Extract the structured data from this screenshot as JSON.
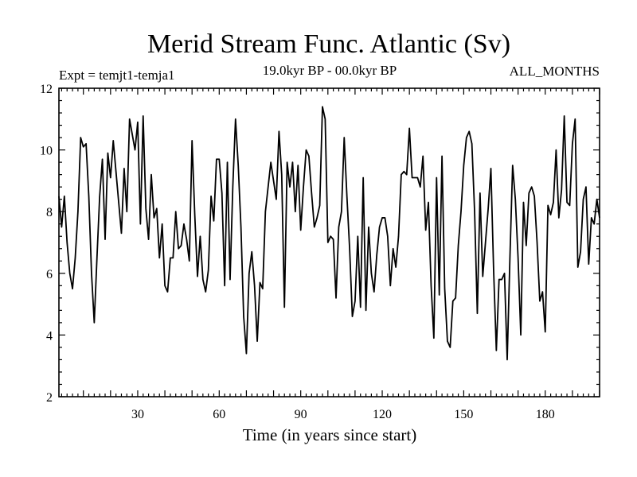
{
  "chart_data": {
    "type": "line",
    "title": "Merid Stream Func. Atlantic (Sv)",
    "left_note": "Expt = temjt1-temja1",
    "center_note": "19.0kyr BP - 00.0kyr BP",
    "right_note": "ALL_MONTHS",
    "xlabel": "Time (in years since start)",
    "ylabel": "",
    "xlim": [
      1,
      200
    ],
    "ylim": [
      2,
      12
    ],
    "xticks": [
      30,
      60,
      90,
      120,
      150,
      180
    ],
    "yticks": [
      2,
      4,
      6,
      8,
      10,
      12
    ],
    "grid": false,
    "series": [
      {
        "name": "Merid Stream Func. Atlantic",
        "color": "#000000",
        "x": [
          1,
          2,
          3,
          4,
          5,
          6,
          7,
          8,
          9,
          10,
          11,
          12,
          13,
          14,
          15,
          16,
          17,
          18,
          19,
          20,
          21,
          22,
          23,
          24,
          25,
          26,
          27,
          28,
          29,
          30,
          31,
          32,
          33,
          34,
          35,
          36,
          37,
          38,
          39,
          40,
          41,
          42,
          43,
          44,
          45,
          46,
          47,
          48,
          49,
          50,
          51,
          52,
          53,
          54,
          55,
          56,
          57,
          58,
          59,
          60,
          61,
          62,
          63,
          64,
          65,
          66,
          67,
          68,
          69,
          70,
          71,
          72,
          73,
          74,
          75,
          76,
          77,
          78,
          79,
          80,
          81,
          82,
          83,
          84,
          85,
          86,
          87,
          88,
          89,
          90,
          91,
          92,
          93,
          94,
          95,
          96,
          97,
          98,
          99,
          100,
          101,
          102,
          103,
          104,
          105,
          106,
          107,
          108,
          109,
          110,
          111,
          112,
          113,
          114,
          115,
          116,
          117,
          118,
          119,
          120,
          121,
          122,
          123,
          124,
          125,
          126,
          127,
          128,
          129,
          130,
          131,
          132,
          133,
          134,
          135,
          136,
          137,
          138,
          139,
          140,
          141,
          142,
          143,
          144,
          145,
          146,
          147,
          148,
          149,
          150,
          151,
          152,
          153,
          154,
          155,
          156,
          157,
          158,
          159,
          160,
          161,
          162,
          163,
          164,
          165,
          166,
          167,
          168,
          169,
          170,
          171,
          172,
          173,
          174,
          175,
          176,
          177,
          178,
          179,
          180,
          181,
          182,
          183,
          184,
          185,
          186,
          187,
          188,
          189,
          190,
          191,
          192,
          193,
          194,
          195,
          196,
          197,
          198,
          199,
          200
        ],
        "values": [
          8.5,
          7.5,
          8.5,
          7.0,
          6.0,
          5.5,
          6.5,
          8.0,
          10.4,
          10.1,
          10.2,
          8.5,
          6.0,
          4.4,
          6.5,
          8.5,
          9.7,
          7.1,
          9.9,
          9.1,
          10.3,
          9.3,
          8.3,
          7.3,
          9.4,
          8.0,
          11.0,
          10.5,
          10.0,
          10.9,
          7.6,
          11.1,
          8.1,
          7.1,
          9.2,
          7.8,
          8.1,
          6.5,
          7.6,
          5.6,
          5.4,
          6.5,
          6.5,
          8.0,
          6.8,
          6.9,
          7.6,
          7.1,
          6.4,
          10.3,
          7.9,
          5.9,
          7.2,
          5.8,
          5.4,
          6.1,
          8.5,
          7.7,
          9.7,
          9.7,
          8.6,
          5.6,
          9.6,
          5.8,
          8.8,
          11.0,
          9.5,
          7.5,
          4.6,
          3.4,
          6.0,
          6.7,
          5.6,
          3.8,
          5.7,
          5.5,
          8.0,
          8.8,
          9.6,
          9.0,
          8.4,
          10.6,
          9.2,
          4.9,
          9.6,
          8.8,
          9.6,
          8.0,
          9.5,
          7.4,
          8.8,
          10.0,
          9.8,
          8.6,
          7.5,
          7.8,
          8.2,
          11.4,
          11.0,
          7.0,
          7.2,
          7.1,
          5.2,
          7.5,
          8.0,
          10.4,
          8.5,
          6.8,
          4.6,
          5.1,
          7.2,
          4.9,
          9.1,
          4.8,
          7.5,
          6.0,
          5.4,
          6.6,
          7.5,
          7.8,
          7.8,
          7.2,
          5.6,
          6.8,
          6.2,
          7.2,
          9.2,
          9.3,
          9.2,
          10.7,
          9.1,
          9.1,
          9.1,
          8.8,
          9.8,
          7.4,
          8.3,
          5.6,
          3.9,
          9.1,
          5.3,
          9.8,
          5.5,
          3.8,
          3.6,
          5.1,
          5.2,
          6.9,
          8.0,
          9.5,
          10.4,
          10.6,
          10.2,
          8.0,
          4.7,
          8.6,
          5.9,
          7.0,
          8.1,
          9.4,
          6.1,
          3.5,
          5.8,
          5.8,
          6.0,
          3.2,
          6.5,
          9.5,
          8.4,
          6.5,
          4.0,
          8.3,
          6.9,
          8.6,
          8.8,
          8.5,
          7.0,
          5.1,
          5.4,
          4.1,
          8.2,
          7.9,
          8.3,
          10.0,
          7.8,
          8.7,
          11.1,
          8.3,
          8.2,
          10.2,
          11.0,
          6.2,
          6.7,
          8.4,
          8.8,
          6.3,
          7.8,
          7.6,
          8.4,
          7.8
        ]
      }
    ]
  }
}
